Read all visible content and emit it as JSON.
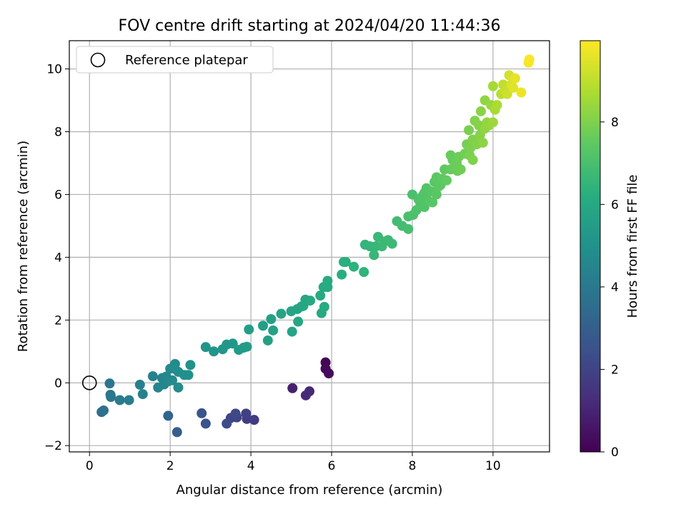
{
  "chart_data": {
    "type": "scatter",
    "title": "FOV centre drift starting at 2024/04/20 11:44:36",
    "xlabel": "Angular distance from reference (arcmin)",
    "ylabel": "Rotation from reference (arcmin)",
    "xlim": [
      -0.5,
      11.4
    ],
    "ylim": [
      -2.2,
      10.9
    ],
    "xticks": [
      0,
      2,
      4,
      6,
      8,
      10
    ],
    "yticks": [
      -2,
      0,
      2,
      4,
      6,
      8,
      10
    ],
    "grid": true,
    "legend": {
      "position": "top-left",
      "entries": [
        {
          "label": "Reference platepar",
          "marker": "open-circle"
        }
      ]
    },
    "reference_point": {
      "x": 0,
      "y": 0
    },
    "colorbar": {
      "label": "Hours from first FF file",
      "colormap": "viridis",
      "range": [
        0,
        9.97
      ],
      "ticks": [
        0,
        2,
        4,
        6,
        8
      ]
    },
    "series": [
      {
        "points": [
          {
            "x": 5.85,
            "y": 0.65,
            "c": 0.1
          },
          {
            "x": 5.85,
            "y": 0.45,
            "c": 0.2
          },
          {
            "x": 5.93,
            "y": 0.3,
            "c": 0.3
          },
          {
            "x": 5.03,
            "y": -0.17,
            "c": 0.9
          },
          {
            "x": 5.45,
            "y": -0.27,
            "c": 1.1
          },
          {
            "x": 5.36,
            "y": -0.4,
            "c": 1.2
          },
          {
            "x": 4.08,
            "y": -1.18,
            "c": 1.7
          },
          {
            "x": 3.9,
            "y": -1.15,
            "c": 1.8
          },
          {
            "x": 3.88,
            "y": -0.98,
            "c": 1.9
          },
          {
            "x": 3.65,
            "y": -1.1,
            "c": 2.0
          },
          {
            "x": 3.5,
            "y": -1.12,
            "c": 2.1
          },
          {
            "x": 3.62,
            "y": -0.98,
            "c": 2.2
          },
          {
            "x": 3.4,
            "y": -1.3,
            "c": 2.3
          },
          {
            "x": 2.88,
            "y": -1.3,
            "c": 2.5
          },
          {
            "x": 2.78,
            "y": -0.97,
            "c": 2.6
          },
          {
            "x": 2.17,
            "y": -1.57,
            "c": 3.0
          },
          {
            "x": 1.95,
            "y": -1.05,
            "c": 3.2
          },
          {
            "x": 0.3,
            "y": -0.93,
            "c": 3.6
          },
          {
            "x": 0.35,
            "y": -0.88,
            "c": 3.7
          },
          {
            "x": 0.52,
            "y": -0.38,
            "c": 3.8
          },
          {
            "x": 0.5,
            "y": -0.02,
            "c": 3.9
          },
          {
            "x": 0.53,
            "y": -0.45,
            "c": 4.0
          },
          {
            "x": 0.75,
            "y": -0.55,
            "c": 4.1
          },
          {
            "x": 0.98,
            "y": -0.55,
            "c": 4.2
          },
          {
            "x": 1.25,
            "y": -0.06,
            "c": 4.3
          },
          {
            "x": 1.32,
            "y": -0.36,
            "c": 4.35
          },
          {
            "x": 1.57,
            "y": 0.21,
            "c": 4.4
          },
          {
            "x": 1.7,
            "y": -0.15,
            "c": 4.45
          },
          {
            "x": 1.8,
            "y": 0.15,
            "c": 4.5
          },
          {
            "x": 1.85,
            "y": -0.05,
            "c": 4.55
          },
          {
            "x": 1.9,
            "y": 0.2,
            "c": 4.6
          },
          {
            "x": 1.95,
            "y": 0.05,
            "c": 4.62
          },
          {
            "x": 2.0,
            "y": 0.45,
            "c": 4.65
          },
          {
            "x": 2.05,
            "y": 0.08,
            "c": 4.7
          },
          {
            "x": 2.12,
            "y": 0.6,
            "c": 4.75
          },
          {
            "x": 2.1,
            "y": 0.45,
            "c": 4.78
          },
          {
            "x": 2.2,
            "y": -0.15,
            "c": 4.8
          },
          {
            "x": 2.2,
            "y": 0.35,
            "c": 4.85
          },
          {
            "x": 2.35,
            "y": 0.25,
            "c": 4.9
          },
          {
            "x": 2.45,
            "y": 0.25,
            "c": 4.95
          },
          {
            "x": 2.5,
            "y": 0.57,
            "c": 5.0
          },
          {
            "x": 2.88,
            "y": 1.14,
            "c": 5.1
          },
          {
            "x": 3.08,
            "y": 1.0,
            "c": 5.15
          },
          {
            "x": 3.3,
            "y": 1.07,
            "c": 5.2
          },
          {
            "x": 3.4,
            "y": 1.22,
            "c": 5.25
          },
          {
            "x": 3.55,
            "y": 1.25,
            "c": 5.3
          },
          {
            "x": 3.7,
            "y": 1.05,
            "c": 5.35
          },
          {
            "x": 3.82,
            "y": 1.12,
            "c": 5.4
          },
          {
            "x": 3.9,
            "y": 1.15,
            "c": 5.45
          },
          {
            "x": 3.95,
            "y": 1.7,
            "c": 5.5
          },
          {
            "x": 4.3,
            "y": 1.82,
            "c": 5.55
          },
          {
            "x": 4.42,
            "y": 1.35,
            "c": 5.6
          },
          {
            "x": 4.5,
            "y": 2.03,
            "c": 5.65
          },
          {
            "x": 4.55,
            "y": 1.67,
            "c": 5.7
          },
          {
            "x": 4.75,
            "y": 2.2,
            "c": 5.75
          },
          {
            "x": 5.0,
            "y": 2.28,
            "c": 5.8
          },
          {
            "x": 5.02,
            "y": 1.63,
            "c": 5.82
          },
          {
            "x": 5.15,
            "y": 2.35,
            "c": 5.85
          },
          {
            "x": 5.17,
            "y": 1.95,
            "c": 5.88
          },
          {
            "x": 5.25,
            "y": 2.43,
            "c": 5.9
          },
          {
            "x": 5.3,
            "y": 2.45,
            "c": 5.92
          },
          {
            "x": 5.35,
            "y": 2.65,
            "c": 5.95
          },
          {
            "x": 5.47,
            "y": 2.62,
            "c": 5.98
          },
          {
            "x": 5.72,
            "y": 2.78,
            "c": 6.0
          },
          {
            "x": 5.75,
            "y": 2.22,
            "c": 6.02
          },
          {
            "x": 5.8,
            "y": 3.05,
            "c": 6.05
          },
          {
            "x": 5.82,
            "y": 2.42,
            "c": 6.08
          },
          {
            "x": 5.9,
            "y": 3.25,
            "c": 6.1
          },
          {
            "x": 5.9,
            "y": 3.05,
            "c": 6.12
          },
          {
            "x": 6.25,
            "y": 3.45,
            "c": 6.2
          },
          {
            "x": 6.35,
            "y": 3.85,
            "c": 6.25
          },
          {
            "x": 6.3,
            "y": 3.85,
            "c": 6.28
          },
          {
            "x": 6.55,
            "y": 3.7,
            "c": 6.35
          },
          {
            "x": 6.8,
            "y": 3.53,
            "c": 6.45
          },
          {
            "x": 6.83,
            "y": 4.4,
            "c": 6.5
          },
          {
            "x": 6.95,
            "y": 4.35,
            "c": 6.55
          },
          {
            "x": 7.05,
            "y": 4.07,
            "c": 6.6
          },
          {
            "x": 7.1,
            "y": 4.35,
            "c": 6.62
          },
          {
            "x": 7.15,
            "y": 4.65,
            "c": 6.65
          },
          {
            "x": 7.25,
            "y": 4.35,
            "c": 6.68
          },
          {
            "x": 7.3,
            "y": 4.5,
            "c": 6.7
          },
          {
            "x": 7.4,
            "y": 4.55,
            "c": 6.72
          },
          {
            "x": 7.5,
            "y": 4.43,
            "c": 6.75
          },
          {
            "x": 7.62,
            "y": 5.15,
            "c": 6.85
          },
          {
            "x": 7.75,
            "y": 5.0,
            "c": 6.9
          },
          {
            "x": 7.9,
            "y": 4.9,
            "c": 6.95
          },
          {
            "x": 7.9,
            "y": 5.3,
            "c": 7.0
          },
          {
            "x": 8.0,
            "y": 6.0,
            "c": 7.05
          },
          {
            "x": 8.02,
            "y": 5.35,
            "c": 7.08
          },
          {
            "x": 8.1,
            "y": 5.5,
            "c": 7.1
          },
          {
            "x": 8.15,
            "y": 5.85,
            "c": 7.12
          },
          {
            "x": 8.2,
            "y": 5.7,
            "c": 7.15
          },
          {
            "x": 8.25,
            "y": 5.95,
            "c": 7.18
          },
          {
            "x": 8.3,
            "y": 6.05,
            "c": 7.2
          },
          {
            "x": 8.3,
            "y": 5.6,
            "c": 7.22
          },
          {
            "x": 8.35,
            "y": 6.2,
            "c": 7.25
          },
          {
            "x": 8.4,
            "y": 5.8,
            "c": 7.28
          },
          {
            "x": 8.45,
            "y": 6.1,
            "c": 7.3
          },
          {
            "x": 8.5,
            "y": 5.75,
            "c": 7.32
          },
          {
            "x": 8.55,
            "y": 6.4,
            "c": 7.35
          },
          {
            "x": 8.6,
            "y": 6.0,
            "c": 7.38
          },
          {
            "x": 8.6,
            "y": 6.55,
            "c": 7.4
          },
          {
            "x": 8.65,
            "y": 6.25,
            "c": 7.42
          },
          {
            "x": 8.7,
            "y": 6.3,
            "c": 7.45
          },
          {
            "x": 8.75,
            "y": 6.5,
            "c": 7.48
          },
          {
            "x": 8.8,
            "y": 6.8,
            "c": 7.5
          },
          {
            "x": 8.85,
            "y": 6.45,
            "c": 7.52
          },
          {
            "x": 8.95,
            "y": 6.8,
            "c": 7.55
          },
          {
            "x": 8.95,
            "y": 7.25,
            "c": 7.6
          },
          {
            "x": 9.0,
            "y": 7.1,
            "c": 7.62
          },
          {
            "x": 9.05,
            "y": 6.85,
            "c": 7.65
          },
          {
            "x": 9.1,
            "y": 7.0,
            "c": 7.68
          },
          {
            "x": 9.12,
            "y": 6.75,
            "c": 7.7
          },
          {
            "x": 9.15,
            "y": 7.2,
            "c": 7.72
          },
          {
            "x": 9.2,
            "y": 6.8,
            "c": 7.75
          },
          {
            "x": 9.3,
            "y": 7.3,
            "c": 7.8
          },
          {
            "x": 9.35,
            "y": 7.6,
            "c": 7.85
          },
          {
            "x": 9.4,
            "y": 8.05,
            "c": 7.9
          },
          {
            "x": 9.42,
            "y": 7.25,
            "c": 7.92
          },
          {
            "x": 9.45,
            "y": 7.5,
            "c": 7.95
          },
          {
            "x": 9.5,
            "y": 7.75,
            "c": 8.0
          },
          {
            "x": 9.5,
            "y": 7.1,
            "c": 8.02
          },
          {
            "x": 9.55,
            "y": 8.35,
            "c": 8.05
          },
          {
            "x": 9.6,
            "y": 7.6,
            "c": 8.08
          },
          {
            "x": 9.65,
            "y": 8.2,
            "c": 8.1
          },
          {
            "x": 9.68,
            "y": 7.9,
            "c": 8.12
          },
          {
            "x": 9.7,
            "y": 8.65,
            "c": 8.15
          },
          {
            "x": 9.75,
            "y": 7.65,
            "c": 8.2
          },
          {
            "x": 9.8,
            "y": 9.0,
            "c": 8.25
          },
          {
            "x": 9.8,
            "y": 8.1,
            "c": 8.28
          },
          {
            "x": 9.85,
            "y": 8.3,
            "c": 8.3
          },
          {
            "x": 9.9,
            "y": 8.2,
            "c": 8.35
          },
          {
            "x": 9.95,
            "y": 8.85,
            "c": 8.4
          },
          {
            "x": 10.0,
            "y": 8.3,
            "c": 8.45
          },
          {
            "x": 10.0,
            "y": 9.45,
            "c": 8.6
          },
          {
            "x": 10.05,
            "y": 8.7,
            "c": 8.65
          },
          {
            "x": 10.1,
            "y": 8.85,
            "c": 8.7
          },
          {
            "x": 10.2,
            "y": 9.2,
            "c": 8.9
          },
          {
            "x": 10.25,
            "y": 9.5,
            "c": 9.0
          },
          {
            "x": 10.3,
            "y": 9.3,
            "c": 9.1
          },
          {
            "x": 10.35,
            "y": 9.2,
            "c": 9.2
          },
          {
            "x": 10.4,
            "y": 9.8,
            "c": 9.3
          },
          {
            "x": 10.45,
            "y": 9.5,
            "c": 9.4
          },
          {
            "x": 10.5,
            "y": 9.4,
            "c": 9.5
          },
          {
            "x": 10.55,
            "y": 9.7,
            "c": 9.6
          },
          {
            "x": 10.7,
            "y": 9.25,
            "c": 9.7
          },
          {
            "x": 10.88,
            "y": 10.2,
            "c": 9.85
          },
          {
            "x": 10.9,
            "y": 10.3,
            "c": 9.9
          }
        ]
      }
    ]
  }
}
